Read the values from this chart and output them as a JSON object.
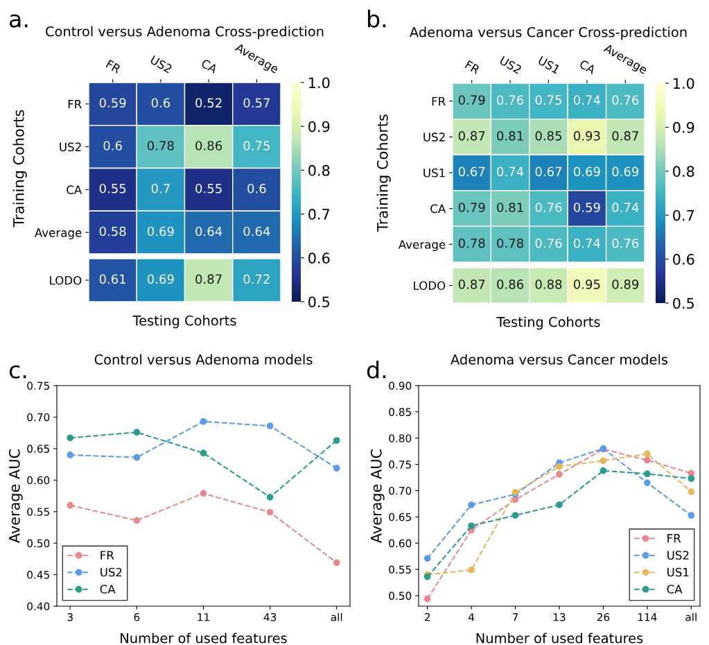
{
  "chart_data": [
    {
      "type": "heatmap",
      "title": "Control versus Adenoma Cross-prediction",
      "ylabel": "Training Cohorts",
      "annotations": [
        "a."
      ],
      "categories": [
        "FR",
        "US2",
        "CA",
        "Average"
      ],
      "y_categories": [
        "FR",
        "US2",
        "CA",
        "Average"
      ],
      "cells": [
        [
          0.59,
          0.6,
          0.52,
          0.57
        ],
        [
          0.6,
          0.78,
          0.86,
          0.75
        ],
        [
          0.55,
          0.7,
          0.55,
          0.6
        ],
        [
          0.58,
          0.69,
          0.64,
          0.64
        ]
      ],
      "clim": [
        0.5,
        1.0
      ],
      "cticks": [
        {
          "value": 0.5,
          "label": "0.5"
        },
        {
          "value": 0.6,
          "label": "0.6"
        },
        {
          "value": 0.7,
          "label": "0.7"
        },
        {
          "value": 0.8,
          "label": "0.8"
        },
        {
          "value": 0.9,
          "label": "0.9"
        },
        {
          "value": 1.0,
          "label": "1.0"
        }
      ],
      "data_labels": true
    },
    {
      "type": "heatmap",
      "xlabel": "Testing Cohorts",
      "categories": [
        null,
        null,
        null,
        null
      ],
      "y_categories": [
        "LODO"
      ],
      "cells": [
        [
          0.61,
          0.69,
          0.87,
          0.72
        ]
      ],
      "data_labels": true
    },
    {
      "type": "heatmap",
      "title": "Adenoma versus Cancer Cross-prediction",
      "ylabel": "Training Cohorts",
      "annotations": [
        "b."
      ],
      "categories": [
        "FR",
        "US2",
        "US1",
        "CA",
        "Average"
      ],
      "y_categories": [
        "FR",
        "US2",
        "US1",
        "CA",
        "Average"
      ],
      "cells": [
        [
          0.79,
          0.76,
          0.75,
          0.74,
          0.76
        ],
        [
          0.87,
          0.81,
          0.85,
          0.93,
          0.87
        ],
        [
          0.67,
          0.74,
          0.67,
          0.69,
          0.69
        ],
        [
          0.79,
          0.81,
          0.76,
          0.59,
          0.74
        ],
        [
          0.78,
          0.78,
          0.76,
          0.74,
          0.76
        ]
      ],
      "clim": [
        0.5,
        1.0
      ],
      "cticks": [
        {
          "value": 0.5,
          "label": "0.5"
        },
        {
          "value": 0.6,
          "label": "0.6"
        },
        {
          "value": 0.7,
          "label": "0.7"
        },
        {
          "value": 0.8,
          "label": "0.8"
        },
        {
          "value": 0.9,
          "label": "0.9"
        },
        {
          "value": 1.0,
          "label": "1.0"
        }
      ],
      "data_labels": true
    },
    {
      "type": "heatmap",
      "xlabel": "Testing Cohorts",
      "categories": [
        null,
        null,
        null,
        null,
        null
      ],
      "y_categories": [
        "LODO"
      ],
      "cells": [
        [
          0.87,
          0.86,
          0.88,
          0.95,
          0.89
        ]
      ],
      "data_labels": true
    },
    {
      "type": "line",
      "title": "Control versus Adenoma models",
      "xlabel": "Number of used features",
      "ylabel": "Average AUC",
      "annotations": [
        "c."
      ],
      "categories": [
        "3",
        "6",
        "11",
        "43",
        "all"
      ],
      "series": [
        {
          "name": "FR",
          "color": "#e8898f",
          "values": [
            0.56,
            0.536,
            0.579,
            0.549,
            0.469
          ]
        },
        {
          "name": "US2",
          "color": "#5b9be8",
          "values": [
            0.64,
            0.636,
            0.693,
            0.686,
            0.619
          ]
        },
        {
          "name": "CA",
          "color": "#2a9d8f",
          "values": [
            0.667,
            0.676,
            0.643,
            0.573,
            0.663
          ]
        }
      ],
      "ylim": [
        0.4,
        0.75
      ],
      "yticks": [
        {
          "value": 0.4,
          "label": "0.40"
        },
        {
          "value": 0.45,
          "label": "0.45"
        },
        {
          "value": 0.5,
          "label": "0.50"
        },
        {
          "value": 0.55,
          "label": "0.55"
        },
        {
          "value": 0.6,
          "label": "0.60"
        },
        {
          "value": 0.65,
          "label": "0.65"
        },
        {
          "value": 0.7,
          "label": "0.70"
        },
        {
          "value": 0.75,
          "label": "0.75"
        }
      ],
      "grid": false,
      "legend": "lower left",
      "marker": "circle",
      "line_style": "dashed"
    },
    {
      "type": "line",
      "title": "Adenoma versus Cancer models",
      "xlabel": "Number of used features",
      "ylabel": "Average AUC",
      "annotations": [
        "d."
      ],
      "categories": [
        "2",
        "4",
        "7",
        "13",
        "26",
        "114",
        "all"
      ],
      "series": [
        {
          "name": "FR",
          "color": "#e8898f",
          "values": [
            0.494,
            0.625,
            0.683,
            0.731,
            0.779,
            0.758,
            0.733
          ]
        },
        {
          "name": "US2",
          "color": "#5b9be8",
          "values": [
            0.571,
            0.673,
            0.693,
            0.753,
            0.78,
            0.715,
            0.653
          ]
        },
        {
          "name": "US1",
          "color": "#e6b85c",
          "values": [
            0.54,
            0.549,
            0.697,
            0.746,
            0.757,
            0.77,
            0.698
          ]
        },
        {
          "name": "CA",
          "color": "#2a9d8f",
          "values": [
            0.536,
            0.633,
            0.653,
            0.673,
            0.738,
            0.732,
            0.723
          ]
        }
      ],
      "ylim": [
        0.48,
        0.9
      ],
      "yticks": [
        {
          "value": 0.5,
          "label": "0.50"
        },
        {
          "value": 0.55,
          "label": "0.55"
        },
        {
          "value": 0.6,
          "label": "0.60"
        },
        {
          "value": 0.65,
          "label": "0.65"
        },
        {
          "value": 0.7,
          "label": "0.70"
        },
        {
          "value": 0.75,
          "label": "0.75"
        },
        {
          "value": 0.8,
          "label": "0.80"
        },
        {
          "value": 0.85,
          "label": "0.85"
        },
        {
          "value": 0.9,
          "label": "0.90"
        }
      ],
      "grid": false,
      "legend": "lower right",
      "marker": "circle",
      "line_style": "dashed"
    }
  ]
}
